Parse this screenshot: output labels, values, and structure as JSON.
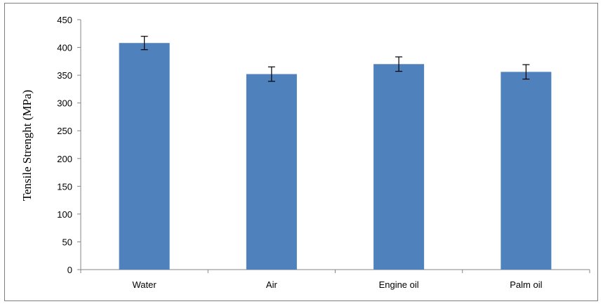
{
  "chart_data": {
    "type": "bar",
    "title": "",
    "xlabel": "",
    "ylabel": "Tensile Strenght (MPa)",
    "categories": [
      "Water",
      "Air",
      "Engine oil",
      "Palm oil"
    ],
    "series": [
      {
        "values": [
          408,
          352,
          370,
          356
        ],
        "errors": [
          12,
          13,
          13,
          13
        ]
      }
    ],
    "ylim": [
      0,
      450
    ],
    "yticks": [
      0,
      50,
      100,
      150,
      200,
      250,
      300,
      350,
      400,
      450
    ],
    "grid": false,
    "legend": "none",
    "bar_color": "#4F81BD"
  }
}
